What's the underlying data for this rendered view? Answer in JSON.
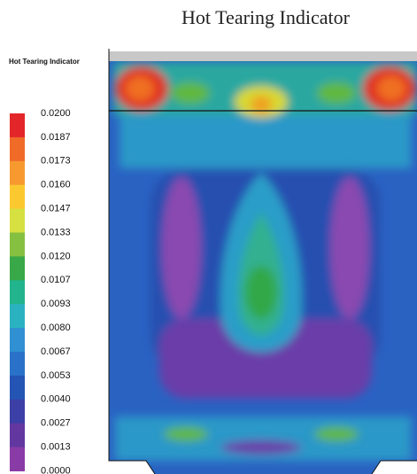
{
  "header": {
    "title": "Hot Tearing Indicator"
  },
  "legend": {
    "title": "Hot Tearing Indicator",
    "labels": [
      "0.0200",
      "0.0187",
      "0.0173",
      "0.0160",
      "0.0147",
      "0.0133",
      "0.0120",
      "0.0107",
      "0.0093",
      "0.0080",
      "0.0067",
      "0.0053",
      "0.0040",
      "0.0027",
      "0.0013",
      "0.0000"
    ]
  }
}
